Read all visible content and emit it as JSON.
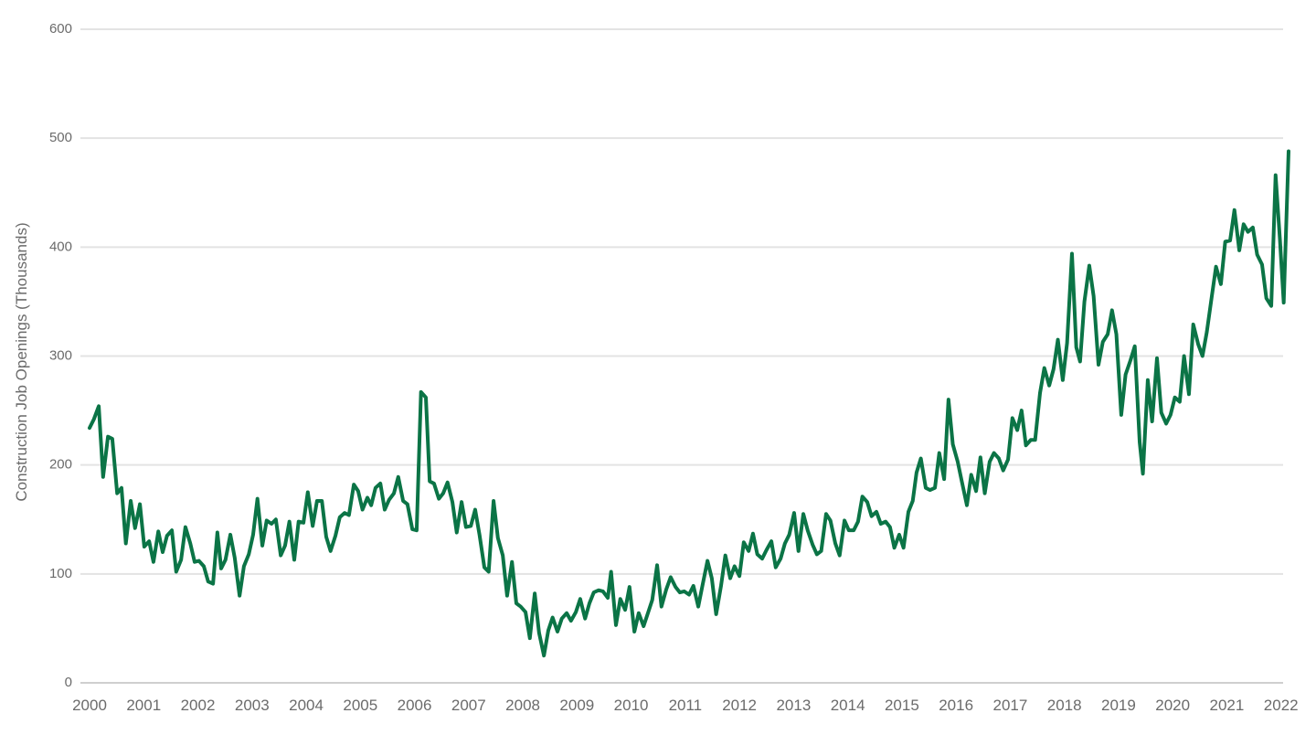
{
  "chart_data": {
    "type": "line",
    "y_label": "Construction Job Openings (Thousands)",
    "x": [
      2000.0,
      2000.08,
      2000.17,
      2000.25,
      2000.34,
      2000.42,
      2000.51,
      2000.59,
      2000.67,
      2000.76,
      2000.84,
      2000.93,
      2001.01,
      2001.1,
      2001.18,
      2001.27,
      2001.35,
      2001.43,
      2001.52,
      2001.6,
      2001.69,
      2001.77,
      2001.86,
      2001.94,
      2002.02,
      2002.11,
      2002.19,
      2002.28,
      2002.36,
      2002.43,
      2002.51,
      2002.6,
      2002.68,
      2002.77,
      2002.85,
      2002.94,
      2003.02,
      2003.1,
      2003.19,
      2003.27,
      2003.36,
      2003.44,
      2003.53,
      2003.61,
      2003.69,
      2003.78,
      2003.86,
      2003.95,
      2004.03,
      2004.12,
      2004.2,
      2004.29,
      2004.37,
      2004.45,
      2004.54,
      2004.62,
      2004.71,
      2004.79,
      2004.88,
      2004.96,
      2005.04,
      2005.13,
      2005.2,
      2005.28,
      2005.37,
      2005.45,
      2005.53,
      2005.62,
      2005.7,
      2005.79,
      2005.87,
      2005.96,
      2006.04,
      2006.12,
      2006.21,
      2006.28,
      2006.36,
      2006.45,
      2006.53,
      2006.61,
      2006.7,
      2006.78,
      2006.87,
      2006.95,
      2007.04,
      2007.12,
      2007.2,
      2007.29,
      2007.37,
      2007.46,
      2007.54,
      2007.63,
      2007.71,
      2007.8,
      2007.88,
      2007.96,
      2008.05,
      2008.13,
      2008.22,
      2008.3,
      2008.39,
      2008.47,
      2008.55,
      2008.64,
      2008.72,
      2008.81,
      2008.89,
      2008.98,
      2009.06,
      2009.15,
      2009.23,
      2009.31,
      2009.4,
      2009.48,
      2009.57,
      2009.63,
      2009.72,
      2009.8,
      2009.89,
      2009.97,
      2010.06,
      2010.14,
      2010.23,
      2010.31,
      2010.39,
      2010.48,
      2010.56,
      2010.65,
      2010.73,
      2010.82,
      2010.9,
      2010.98,
      2011.07,
      2011.15,
      2011.24,
      2011.32,
      2011.41,
      2011.49,
      2011.57,
      2011.66,
      2011.74,
      2011.83,
      2011.91,
      2012.0,
      2012.08,
      2012.17,
      2012.25,
      2012.33,
      2012.42,
      2012.5,
      2012.59,
      2012.67,
      2012.76,
      2012.84,
      2012.92,
      2013.01,
      2013.09,
      2013.18,
      2013.26,
      2013.35,
      2013.43,
      2013.51,
      2013.6,
      2013.68,
      2013.77,
      2013.85,
      2013.94,
      2014.02,
      2014.11,
      2014.19,
      2014.27,
      2014.36,
      2014.44,
      2014.53,
      2014.61,
      2014.7,
      2014.78,
      2014.86,
      2014.95,
      2015.03,
      2015.12,
      2015.2,
      2015.27,
      2015.35,
      2015.44,
      2015.52,
      2015.61,
      2015.69,
      2015.78,
      2015.86,
      2015.94,
      2016.03,
      2016.11,
      2016.2,
      2016.28,
      2016.37,
      2016.45,
      2016.53,
      2016.62,
      2016.7,
      2016.79,
      2016.87,
      2016.96,
      2017.04,
      2017.13,
      2017.21,
      2017.29,
      2017.38,
      2017.46,
      2017.55,
      2017.63,
      2017.72,
      2017.8,
      2017.88,
      2017.97,
      2018.05,
      2018.14,
      2018.22,
      2018.29,
      2018.37,
      2018.46,
      2018.54,
      2018.63,
      2018.71,
      2018.8,
      2018.88,
      2018.96,
      2019.05,
      2019.13,
      2019.22,
      2019.3,
      2019.39,
      2019.45,
      2019.54,
      2019.62,
      2019.71,
      2019.79,
      2019.88,
      2019.96,
      2020.04,
      2020.13,
      2020.21,
      2020.3,
      2020.38,
      2020.47,
      2020.55,
      2020.63,
      2020.72,
      2020.8,
      2020.89,
      2020.97,
      2021.06,
      2021.14,
      2021.23,
      2021.31,
      2021.39,
      2021.48,
      2021.56,
      2021.65,
      2021.73,
      2021.82,
      2021.9,
      2021.98,
      2022.05,
      2022.14
    ],
    "series": [
      {
        "color": "#0b7446",
        "values": [
          234,
          242,
          254,
          189,
          226,
          224,
          174,
          179,
          128,
          167,
          142,
          164,
          125,
          130,
          111,
          139,
          120,
          135,
          140,
          102,
          113,
          143,
          128,
          111,
          112,
          107,
          93,
          91,
          138,
          105,
          113,
          136,
          115,
          80,
          107,
          118,
          136,
          169,
          126,
          149,
          146,
          150,
          117,
          126,
          148,
          113,
          148,
          147,
          175,
          144,
          167,
          167,
          134,
          121,
          135,
          152,
          156,
          154,
          182,
          176,
          159,
          170,
          163,
          179,
          183,
          159,
          168,
          174,
          189,
          167,
          164,
          141,
          140,
          267,
          262,
          185,
          183,
          169,
          174,
          184,
          166,
          138,
          166,
          143,
          144,
          159,
          136,
          106,
          102,
          167,
          133,
          117,
          80,
          111,
          73,
          70,
          65,
          41,
          82,
          46,
          25,
          48,
          60,
          47,
          59,
          64,
          57,
          65,
          77,
          59,
          73,
          83,
          85,
          84,
          78,
          102,
          53,
          77,
          67,
          88,
          47,
          64,
          52,
          64,
          76,
          108,
          70,
          86,
          97,
          88,
          83,
          84,
          81,
          89,
          70,
          90,
          112,
          96,
          63,
          89,
          117,
          96,
          107,
          98,
          129,
          121,
          137,
          118,
          114,
          122,
          130,
          106,
          114,
          128,
          136,
          156,
          121,
          155,
          140,
          127,
          118,
          121,
          155,
          149,
          128,
          117,
          149,
          140,
          140,
          148,
          171,
          166,
          153,
          157,
          146,
          148,
          143,
          124,
          136,
          124,
          157,
          167,
          193,
          206,
          179,
          177,
          179,
          211,
          187,
          260,
          219,
          203,
          184,
          163,
          191,
          176,
          207,
          174,
          203,
          211,
          206,
          195,
          205,
          243,
          232,
          250,
          218,
          223,
          223,
          266,
          289,
          273,
          288,
          315,
          278,
          312,
          394,
          308,
          295,
          350,
          383,
          355,
          292,
          313,
          320,
          342,
          320,
          246,
          283,
          296,
          309,
          221,
          192,
          278,
          240,
          298,
          248,
          238,
          246,
          262,
          258,
          300,
          265,
          329,
          311,
          300,
          322,
          354,
          382,
          366,
          405,
          406,
          434,
          397,
          421,
          414,
          418,
          393,
          384,
          353,
          346,
          466,
          407,
          349,
          488
        ]
      }
    ],
    "xlim": [
      2000,
      2022.14
    ],
    "xticks": [
      2000,
      2001,
      2002,
      2003,
      2004,
      2005,
      2006,
      2007,
      2008,
      2009,
      2010,
      2011,
      2012,
      2013,
      2014,
      2015,
      2016,
      2017,
      2018,
      2019,
      2020,
      2021,
      2022
    ],
    "ylim": [
      0,
      600
    ],
    "yticks": [
      0,
      100,
      200,
      300,
      400,
      500,
      600
    ],
    "grid": true
  }
}
